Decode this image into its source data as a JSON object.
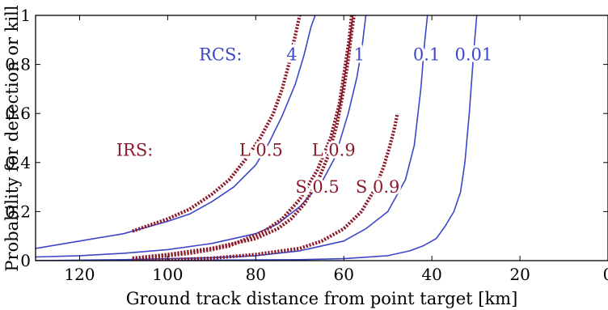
{
  "chart_data": {
    "type": "line",
    "title": "",
    "xlabel": "Ground track distance from point target [km]",
    "ylabel": "Probability for detection or kill",
    "xlim": [
      130,
      0
    ],
    "ylim": [
      0,
      1
    ],
    "x_reversed": true,
    "x_ticks": [
      "120",
      "100",
      "80",
      "60",
      "40",
      "20",
      "0"
    ],
    "x_tick_values": [
      120,
      100,
      80,
      60,
      40,
      20,
      0
    ],
    "y_ticks": [
      "0",
      "0.2",
      "0.4",
      "0.6",
      "0.8",
      "1"
    ],
    "y_tick_values": [
      0,
      0.2,
      0.4,
      0.6,
      0.8,
      1
    ],
    "grid": false,
    "colors": {
      "rcs": "#3c46c8",
      "irs": "#8b1a2b"
    },
    "rcs_group_label": "RCS:",
    "irs_group_label": "IRS:",
    "series": [
      {
        "name": "4",
        "group": "RCS",
        "style": "solid",
        "x": [
          130,
          120,
          110,
          100,
          95,
          90,
          85,
          80,
          77,
          74,
          71,
          69,
          67.5,
          66.5
        ],
        "y": [
          0.05,
          0.08,
          0.11,
          0.16,
          0.19,
          0.24,
          0.3,
          0.39,
          0.48,
          0.59,
          0.72,
          0.84,
          0.95,
          1.0
        ]
      },
      {
        "name": "1",
        "group": "RCS",
        "style": "solid",
        "x": [
          130,
          120,
          110,
          100,
          90,
          80,
          75,
          70,
          65,
          62,
          59,
          57,
          55.8,
          55
        ],
        "y": [
          0.015,
          0.02,
          0.03,
          0.045,
          0.07,
          0.11,
          0.15,
          0.22,
          0.32,
          0.42,
          0.6,
          0.75,
          0.88,
          1.0
        ]
      },
      {
        "name": "0.1",
        "group": "RCS",
        "style": "solid",
        "x": [
          130,
          120,
          110,
          100,
          90,
          80,
          70,
          60,
          55,
          50,
          46,
          44,
          42.5,
          41.7,
          41
        ],
        "y": [
          0.0,
          0.002,
          0.004,
          0.008,
          0.012,
          0.02,
          0.04,
          0.08,
          0.13,
          0.2,
          0.33,
          0.47,
          0.7,
          0.88,
          1.0
        ]
      },
      {
        "name": "0.01",
        "group": "RCS",
        "style": "solid",
        "x": [
          130,
          110,
          90,
          70,
          60,
          50,
          45,
          42,
          39,
          37,
          35,
          33.5,
          32.5,
          31.5,
          30.5,
          29.8
        ],
        "y": [
          0.0,
          0.0,
          0.002,
          0.004,
          0.008,
          0.02,
          0.04,
          0.06,
          0.09,
          0.14,
          0.2,
          0.28,
          0.4,
          0.6,
          0.85,
          1.0
        ]
      },
      {
        "name": "L 0.5",
        "group": "IRS",
        "style": "dotted",
        "x": [
          108,
          100,
          95,
          90,
          86,
          82,
          79,
          76,
          74,
          72.5,
          71.5,
          70.5,
          70
        ],
        "y": [
          0.12,
          0.17,
          0.21,
          0.27,
          0.33,
          0.42,
          0.5,
          0.6,
          0.7,
          0.8,
          0.88,
          0.96,
          1.0
        ]
      },
      {
        "name": "L 0.9",
        "group": "IRS",
        "style": "dotted",
        "x": [
          108,
          100,
          95,
          90,
          86,
          82,
          78,
          74,
          70,
          66,
          63,
          61,
          59.8,
          58.8,
          58.2
        ],
        "y": [
          0.005,
          0.02,
          0.03,
          0.045,
          0.06,
          0.09,
          0.12,
          0.17,
          0.25,
          0.37,
          0.5,
          0.64,
          0.78,
          0.9,
          1.0
        ]
      },
      {
        "name": "S 0.5",
        "group": "IRS",
        "style": "dotted",
        "x": [
          108,
          100,
          90,
          80,
          75,
          72,
          69,
          66,
          63.5,
          61.5,
          60,
          59,
          58.3,
          57.7
        ],
        "y": [
          0.01,
          0.025,
          0.05,
          0.09,
          0.13,
          0.17,
          0.23,
          0.32,
          0.43,
          0.56,
          0.7,
          0.82,
          0.92,
          1.0
        ]
      },
      {
        "name": "S 0.9",
        "group": "IRS",
        "style": "dotted",
        "x": [
          108,
          100,
          90,
          80,
          70,
          65,
          60,
          56,
          53,
          51,
          49.5,
          48.5,
          47.8
        ],
        "y": [
          0.0,
          0.003,
          0.01,
          0.025,
          0.05,
          0.08,
          0.13,
          0.2,
          0.29,
          0.38,
          0.47,
          0.54,
          0.6
        ]
      }
    ]
  }
}
